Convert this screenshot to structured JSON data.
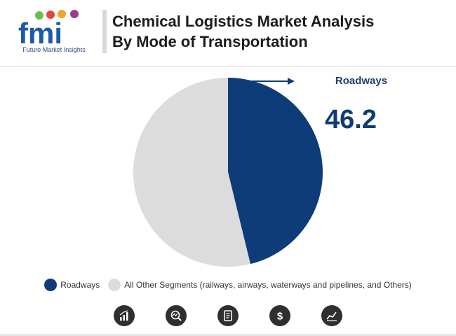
{
  "brand": {
    "short": "fmi",
    "full": "Future Market Insights"
  },
  "title_line1": "Chemical Logistics Market Analysis",
  "title_line2": "By Mode of Transportation",
  "chart_data": {
    "type": "pie",
    "title": "Chemical Logistics Market Analysis By Mode of Transportation",
    "categories": [
      "Roadways",
      "All Other Segments (railways, airways, waterways and pipelines, and Others)"
    ],
    "values": [
      46.2,
      53.8
    ],
    "colors": [
      "#0e3c78",
      "#dcdcdc"
    ],
    "highlight": {
      "label": "Roadways",
      "value": "46.2"
    },
    "legend": {
      "position": "bottom"
    }
  },
  "icons": [
    "bar-chart-icon",
    "magnifier-chart-icon",
    "document-icon",
    "dollar-icon",
    "line-chart-icon"
  ]
}
